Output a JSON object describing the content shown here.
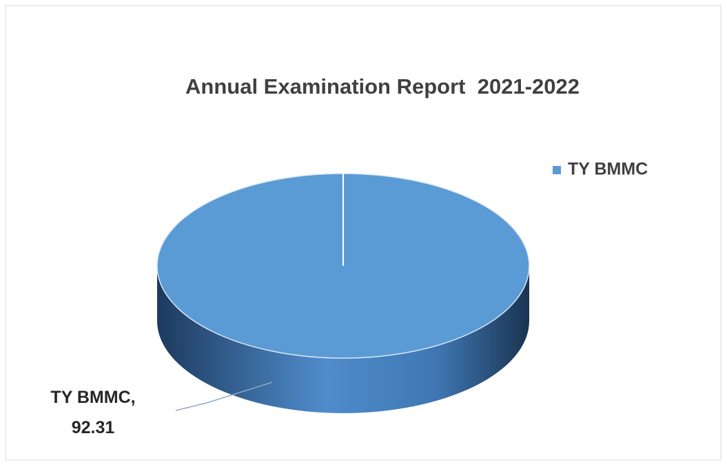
{
  "chart_data": {
    "type": "pie",
    "title": "Annual Examination Report  2021-2022",
    "categories": [
      "TY BMMC"
    ],
    "values": [
      92.31
    ],
    "value_labels": [
      "TY BMMC, 92.31"
    ],
    "colors": [
      "#5b9bd5"
    ],
    "legend": "right",
    "three_d": true
  }
}
